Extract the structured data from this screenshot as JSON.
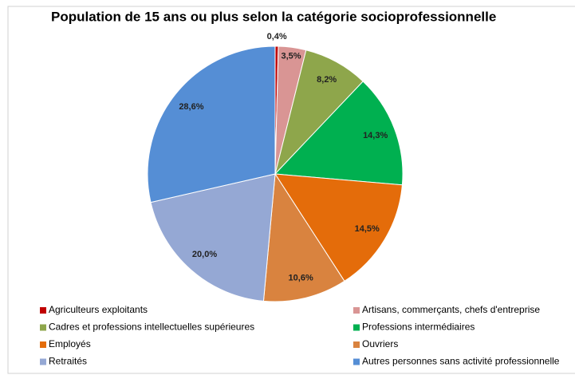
{
  "chart_data": {
    "type": "pie",
    "title": "Population de 15 ans ou plus selon la catégorie socioprofessionnelle",
    "categories": [
      "Agriculteurs exploitants",
      "Artisans, commerçants, chefs d'entreprise",
      "Cadres et professions intellectuelles supérieures",
      "Professions intermédiaires",
      "Employés",
      "Ouvriers",
      "Retraités",
      "Autres personnes sans activité professionnelle"
    ],
    "values": [
      0.4,
      3.5,
      8.2,
      14.3,
      14.5,
      10.6,
      20.0,
      28.6
    ],
    "value_labels": [
      "0,4%",
      "3,5%",
      "8,2%",
      "14,3%",
      "14,5%",
      "10,6%",
      "20,0%",
      "28,6%"
    ],
    "colors": [
      "#c00000",
      "#d99594",
      "#8ea64b",
      "#00b050",
      "#e46c0a",
      "#d9833f",
      "#95a8d4",
      "#558ed5"
    ]
  }
}
